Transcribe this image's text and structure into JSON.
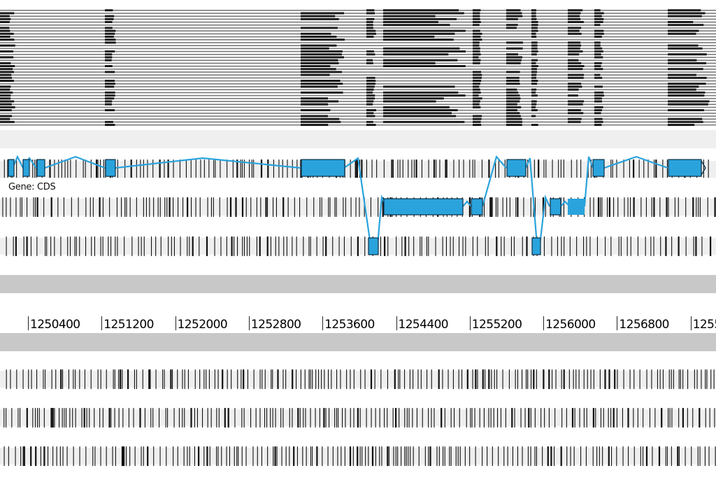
{
  "track": {
    "gene_label": "Gene: CDS"
  },
  "ruler": {
    "ticks": [
      "1250400",
      "1251200",
      "1252000",
      "1252800",
      "1253600",
      "1254400",
      "1255200",
      "1256000",
      "1256800",
      "1255"
    ]
  },
  "colors": {
    "exon": "#2aa3dc",
    "intron": "#2aa3dc",
    "exon_outline": "#0b2f45",
    "band_light": "#efefef",
    "band_grey": "#c8c8c8",
    "ink": "#111111"
  },
  "icons": {
    "strand": "chevron-right-icon"
  }
}
